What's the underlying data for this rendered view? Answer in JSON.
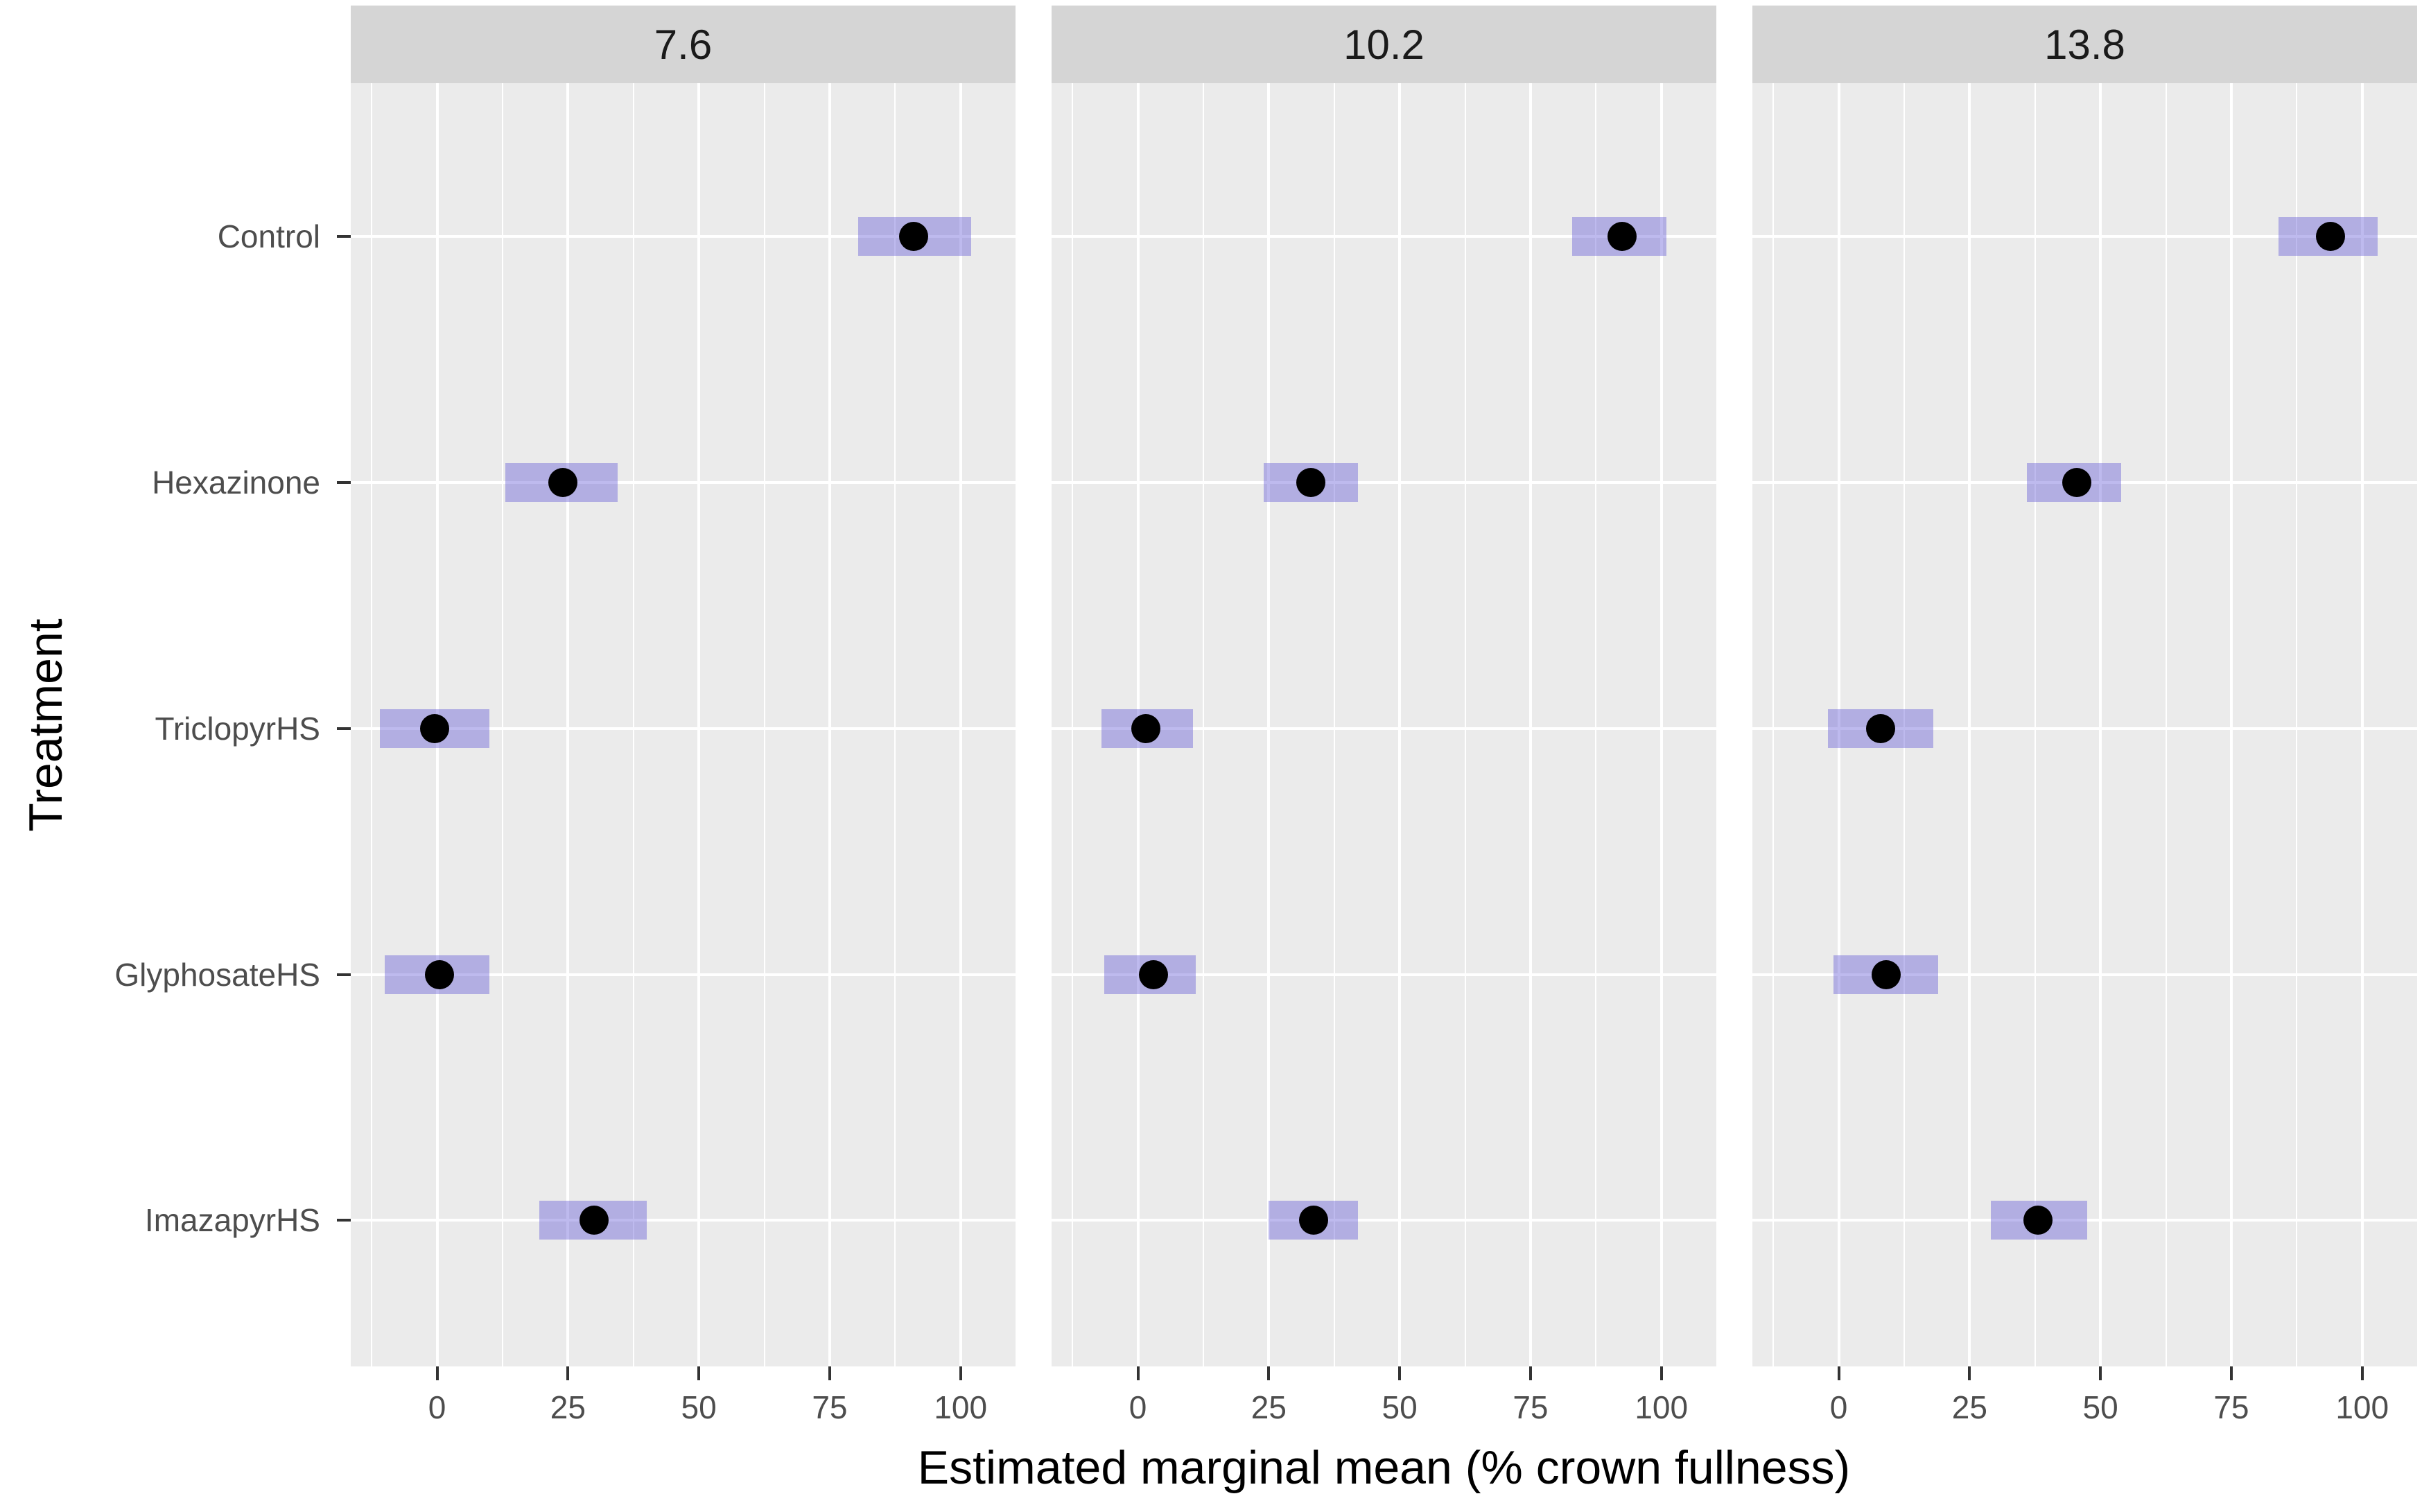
{
  "chart_data": {
    "type": "scatter",
    "subtype": "faceted-dot-plot-with-confidence-intervals",
    "title": "",
    "xlabel": "Estimated marginal mean (% crown fullness)",
    "ylabel": "Treatment",
    "xlim": [
      -16.5,
      110.5
    ],
    "x_ticks": [
      "0",
      "25",
      "50",
      "75",
      "100"
    ],
    "x_tick_values": [
      0,
      25,
      50,
      75,
      100
    ],
    "x_minor_gridlines": [
      -12.5,
      12.5,
      37.5,
      62.5,
      87.5
    ],
    "grid": "white-on-gray, major vertical + one horizontal line per category",
    "legend_position": "none",
    "categories": [
      "Control",
      "Hexazinone",
      "TriclopyrHS",
      "GlyphosateHS",
      "ImazapyrHS"
    ],
    "facets": [
      {
        "label": "7.6",
        "points": [
          {
            "category": "Control",
            "mean": 91.0,
            "ci_low": 80.5,
            "ci_high": 102.0
          },
          {
            "category": "Hexazinone",
            "mean": 24.0,
            "ci_low": 13.0,
            "ci_high": 34.5
          },
          {
            "category": "TriclopyrHS",
            "mean": -0.5,
            "ci_low": -11.0,
            "ci_high": 10.0
          },
          {
            "category": "GlyphosateHS",
            "mean": 0.5,
            "ci_low": -10.0,
            "ci_high": 10.0
          },
          {
            "category": "ImazapyrHS",
            "mean": 30.0,
            "ci_low": 19.5,
            "ci_high": 40.0
          }
        ]
      },
      {
        "label": "10.2",
        "points": [
          {
            "category": "Control",
            "mean": 92.5,
            "ci_low": 83.0,
            "ci_high": 101.0
          },
          {
            "category": "Hexazinone",
            "mean": 33.0,
            "ci_low": 24.0,
            "ci_high": 42.0
          },
          {
            "category": "TriclopyrHS",
            "mean": 1.5,
            "ci_low": -7.0,
            "ci_high": 10.5
          },
          {
            "category": "GlyphosateHS",
            "mean": 3.0,
            "ci_low": -6.5,
            "ci_high": 11.0
          },
          {
            "category": "ImazapyrHS",
            "mean": 33.5,
            "ci_low": 25.0,
            "ci_high": 42.0
          }
        ]
      },
      {
        "label": "13.8",
        "points": [
          {
            "category": "Control",
            "mean": 94.0,
            "ci_low": 84.0,
            "ci_high": 103.0
          },
          {
            "category": "Hexazinone",
            "mean": 45.5,
            "ci_low": 36.0,
            "ci_high": 54.0
          },
          {
            "category": "TriclopyrHS",
            "mean": 8.0,
            "ci_low": -2.0,
            "ci_high": 18.0
          },
          {
            "category": "GlyphosateHS",
            "mean": 9.0,
            "ci_low": -1.0,
            "ci_high": 19.0
          },
          {
            "category": "ImazapyrHS",
            "mean": 38.0,
            "ci_low": 29.0,
            "ci_high": 47.5
          }
        ]
      }
    ],
    "colors": {
      "panel_background": "#ebebeb",
      "strip_background": "#d5d5d5",
      "gridline": "#ffffff",
      "ci_bar_fill": "rgba(99,91,214,0.42)",
      "point": "#000000",
      "tick_label": "#4d4d4d",
      "strip_text": "#1a1a1a",
      "axis_title": "#000000"
    }
  }
}
